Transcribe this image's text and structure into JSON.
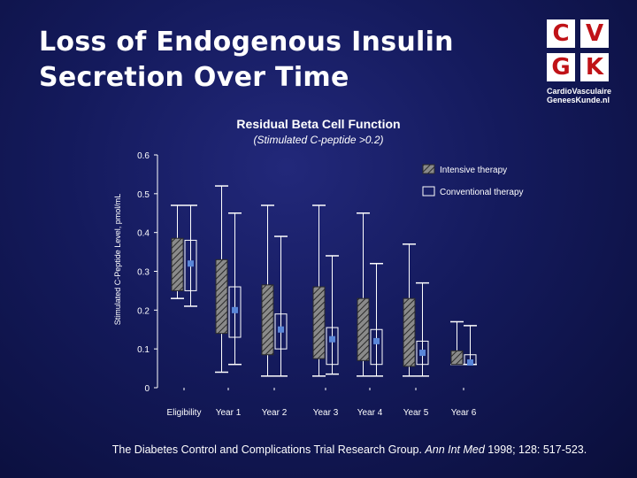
{
  "slide": {
    "title_line1": "Loss of Endogenous Insulin",
    "title_line2": "Secretion Over Time",
    "citation_prefix": "The Diabetes Control and Complications Trial Research Group. ",
    "citation_journal": "Ann Int Med",
    "citation_suffix": " 1998; 128: 517-523."
  },
  "logo": {
    "letters": [
      "C",
      "V",
      "G",
      "K"
    ],
    "line1": "CardioVasculaire",
    "line2": "GeneesKunde.nl",
    "brand_color": "#c01217"
  },
  "chart_data": {
    "type": "boxplot",
    "title": "Residual Beta Cell Function",
    "subtitle": "(Stimulated C-peptide >0.2)",
    "ylabel": "Stimulated C-Peptide Level, pmol/mL",
    "xlabel": "",
    "ylim": [
      0,
      0.6
    ],
    "yticks": [
      "0",
      "0.1",
      "0.2",
      "0.3",
      "0.4",
      "0.5",
      "0.6"
    ],
    "categories": [
      "Eligibility",
      "Year 1",
      "Year 2",
      "Year 3",
      "Year 4",
      "Year 5",
      "Year 6"
    ],
    "legend_position": "top-right",
    "series": [
      {
        "name": "Intensive therapy",
        "fill": "hatched",
        "boxes": [
          {
            "whisker_low": 0.23,
            "q1": 0.25,
            "q3": 0.385,
            "whisker_high": 0.47
          },
          {
            "whisker_low": 0.04,
            "q1": 0.14,
            "q3": 0.33,
            "whisker_high": 0.52
          },
          {
            "whisker_low": 0.03,
            "q1": 0.085,
            "q3": 0.265,
            "whisker_high": 0.47
          },
          {
            "whisker_low": 0.03,
            "q1": 0.075,
            "q3": 0.26,
            "whisker_high": 0.47
          },
          {
            "whisker_low": 0.03,
            "q1": 0.07,
            "q3": 0.23,
            "whisker_high": 0.45
          },
          {
            "whisker_low": 0.03,
            "q1": 0.055,
            "q3": 0.23,
            "whisker_high": 0.37
          },
          {
            "whisker_low": 0.06,
            "q1": 0.06,
            "q3": 0.095,
            "whisker_high": 0.17
          }
        ]
      },
      {
        "name": "Conventional therapy",
        "fill": "open",
        "boxes": [
          {
            "whisker_low": 0.21,
            "q1": 0.25,
            "q3": 0.38,
            "whisker_high": 0.47,
            "median": 0.32
          },
          {
            "whisker_low": 0.06,
            "q1": 0.13,
            "q3": 0.26,
            "whisker_high": 0.45,
            "median": 0.2
          },
          {
            "whisker_low": 0.03,
            "q1": 0.1,
            "q3": 0.19,
            "whisker_high": 0.39,
            "median": 0.15
          },
          {
            "whisker_low": 0.035,
            "q1": 0.06,
            "q3": 0.155,
            "whisker_high": 0.34,
            "median": 0.125
          },
          {
            "whisker_low": 0.03,
            "q1": 0.06,
            "q3": 0.15,
            "whisker_high": 0.32,
            "median": 0.12
          },
          {
            "whisker_low": 0.03,
            "q1": 0.06,
            "q3": 0.12,
            "whisker_high": 0.27,
            "median": 0.09
          },
          {
            "whisker_low": 0.06,
            "q1": 0.06,
            "q3": 0.085,
            "whisker_high": 0.16,
            "median": 0.065
          }
        ]
      }
    ]
  }
}
